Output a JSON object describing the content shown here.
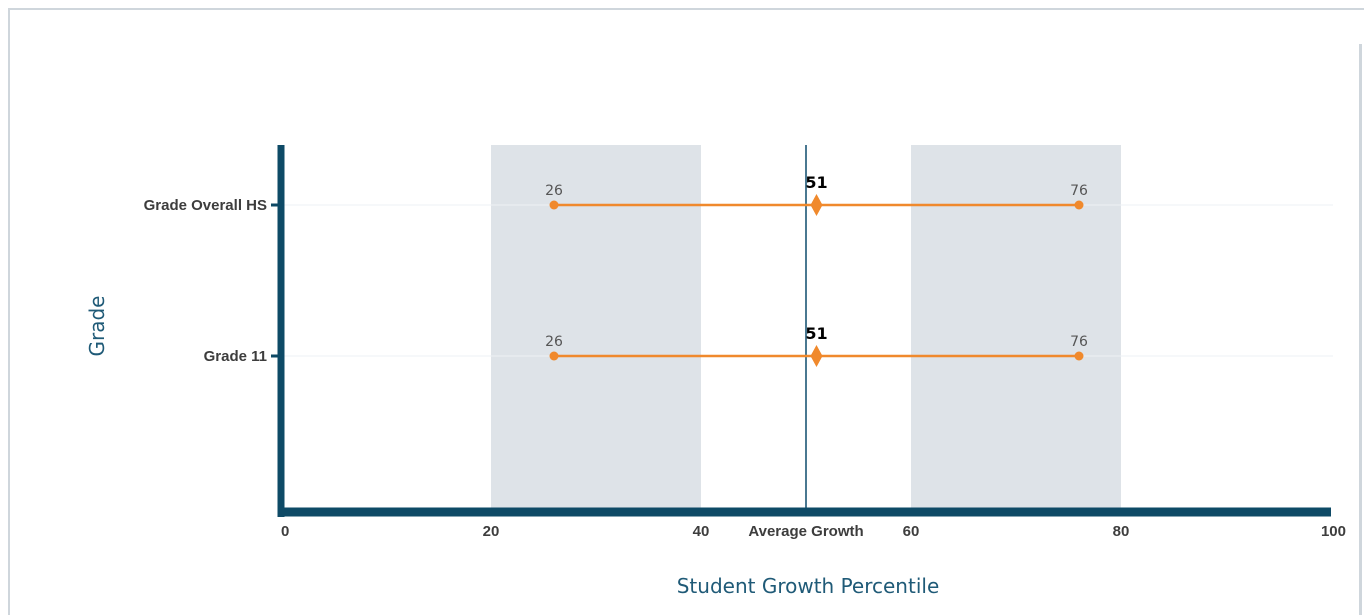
{
  "colors": {
    "axis": "#0e4a66",
    "band": "#dee3e8",
    "average_line": "#4a7891",
    "range_line": "#f0892c",
    "gridline": "#eef1f4"
  },
  "chart_data": {
    "type": "dot-range",
    "xlabel": "Student Growth Percentile",
    "ylabel": "Grade",
    "xlim": [
      0,
      100
    ],
    "x_ticks": [
      {
        "value": 0,
        "label": "0"
      },
      {
        "value": 20,
        "label": "20"
      },
      {
        "value": 40,
        "label": "40"
      },
      {
        "value": 60,
        "label": "60"
      },
      {
        "value": 80,
        "label": "80"
      },
      {
        "value": 100,
        "label": "100"
      }
    ],
    "average_growth": {
      "value": 50,
      "label": "Average Growth"
    },
    "shaded_bands": [
      [
        20,
        40
      ],
      [
        60,
        80
      ]
    ],
    "categories": [
      "Grade Overall HS",
      "Grade 11"
    ],
    "series": [
      {
        "category": "Grade Overall HS",
        "low": 26,
        "median": 51,
        "high": 76
      },
      {
        "category": "Grade 11",
        "low": 26,
        "median": 51,
        "high": 76
      }
    ],
    "grid": "horizontal",
    "legend": "none"
  }
}
